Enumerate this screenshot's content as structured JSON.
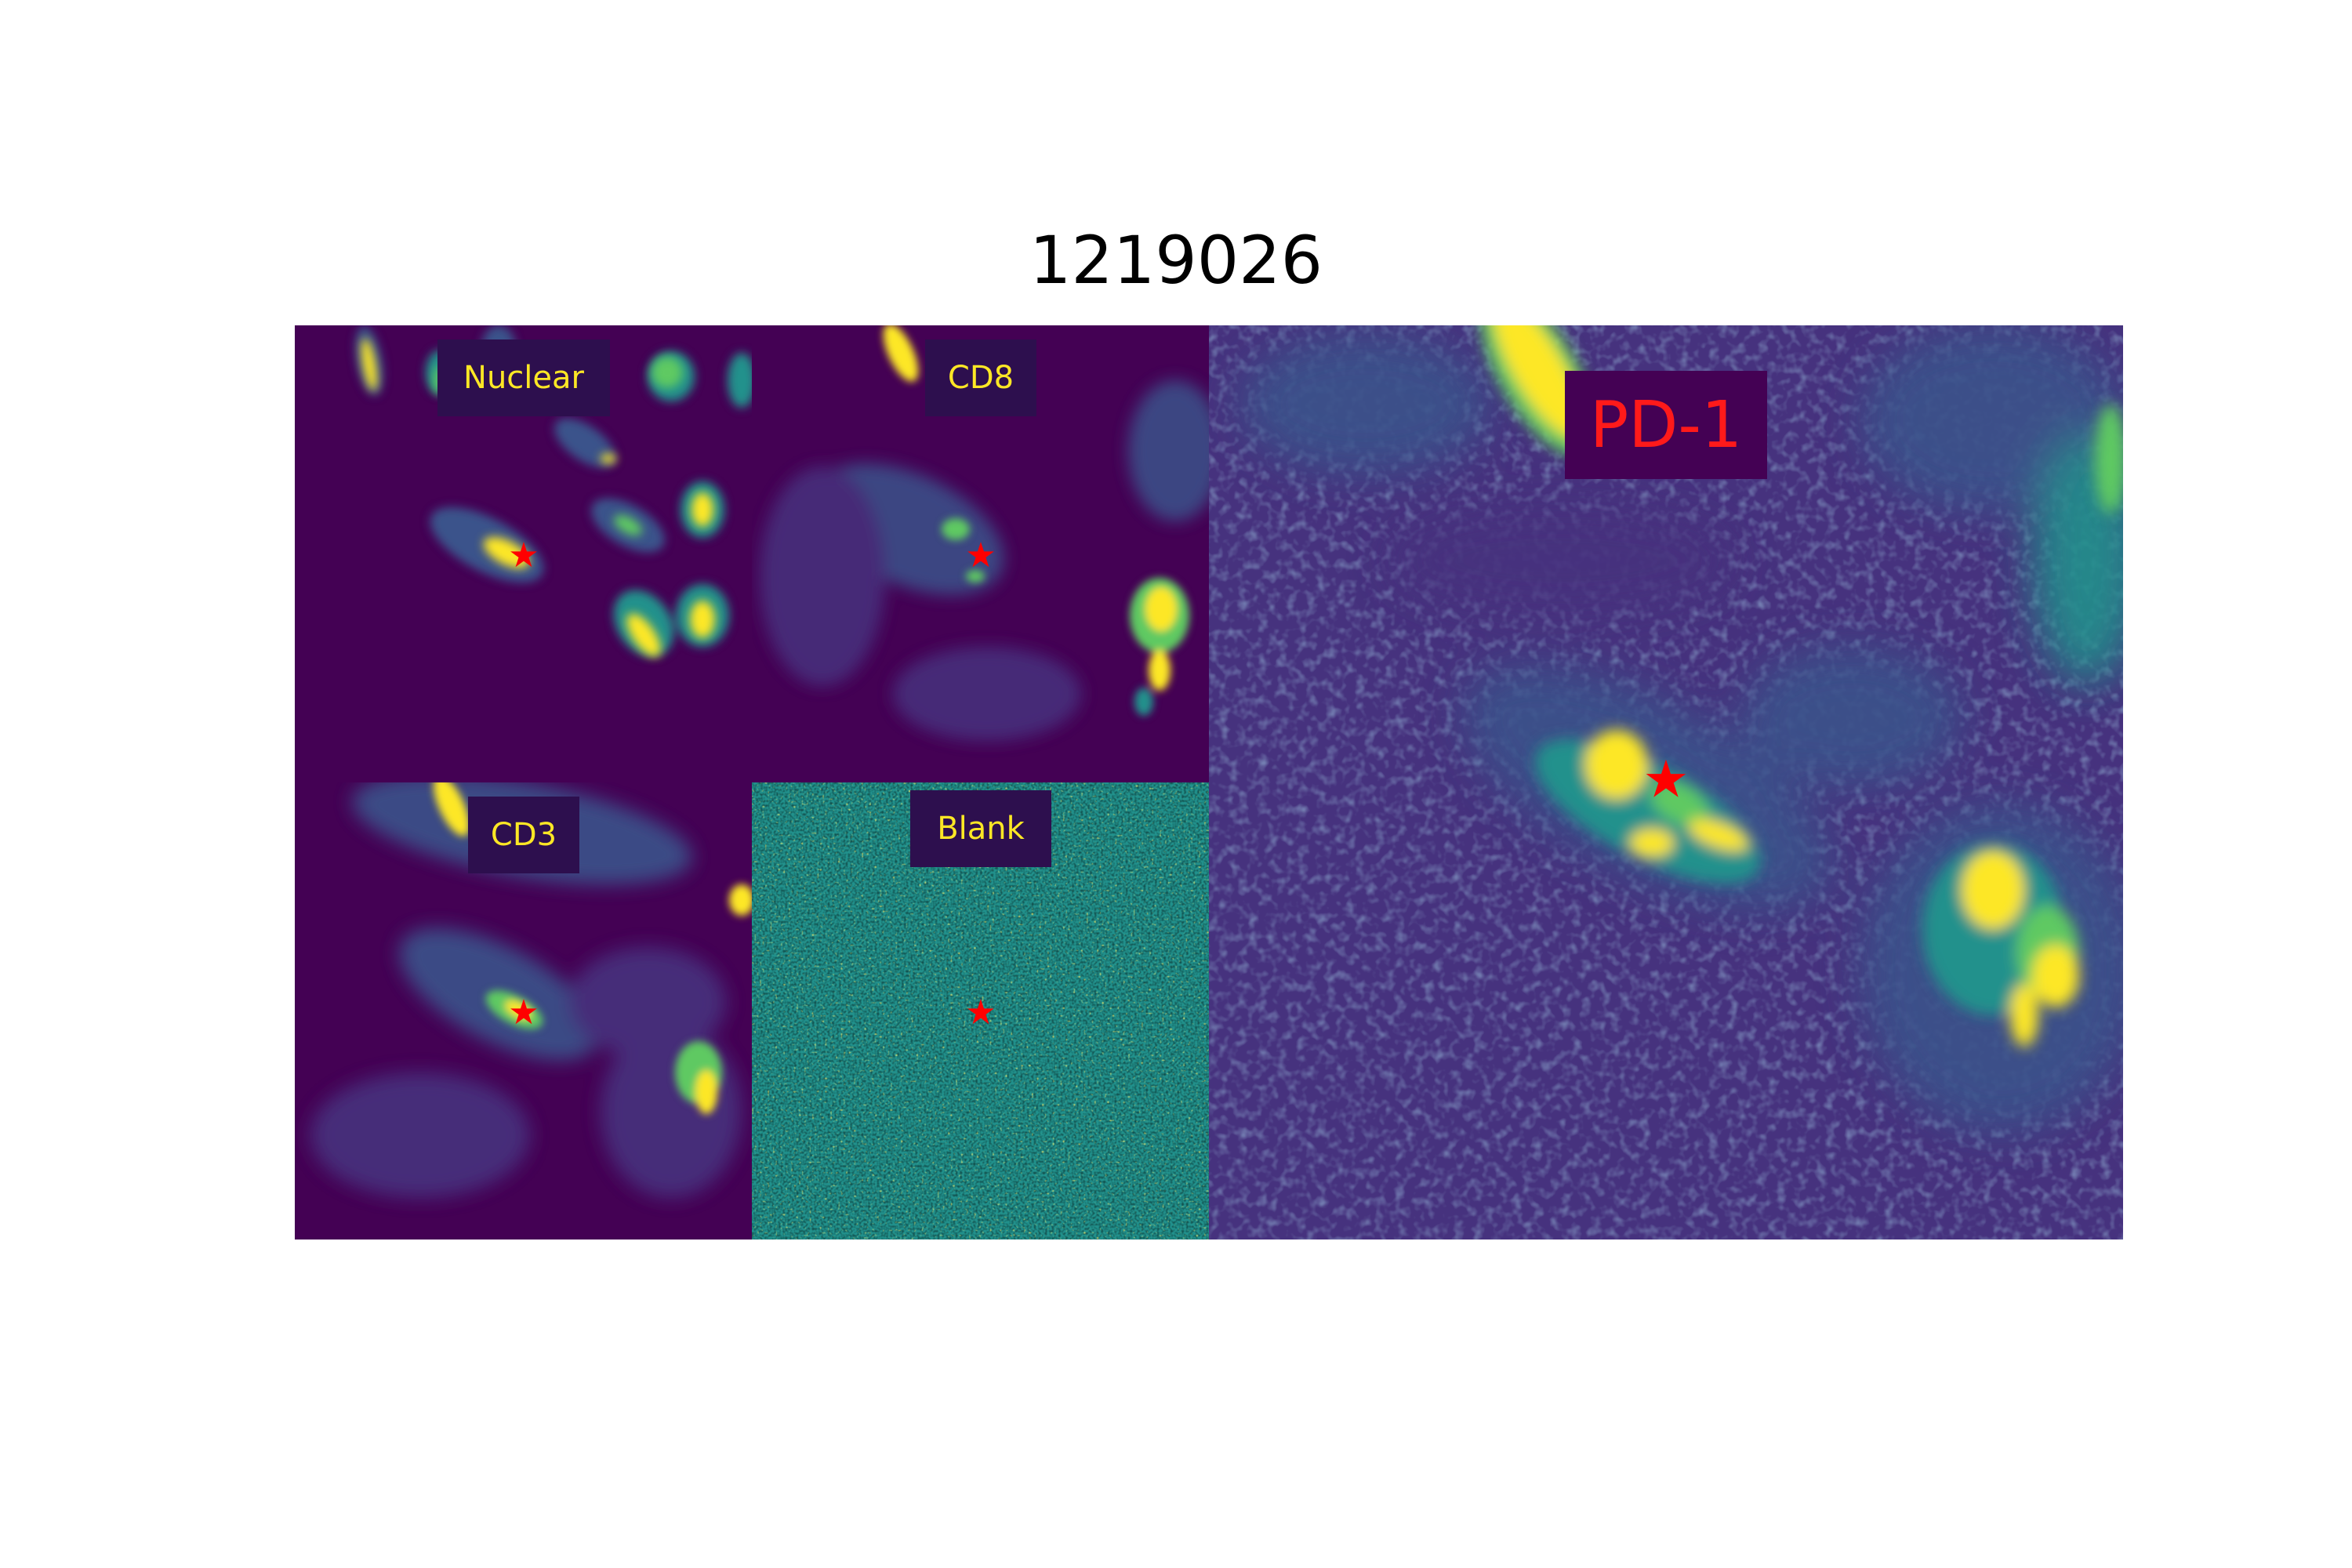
{
  "figure": {
    "title": "1219026"
  },
  "panels": [
    {
      "id": "nuclear",
      "label": "Nuclear",
      "label_color": "#fde725",
      "background": "viridis-dark"
    },
    {
      "id": "cd8",
      "label": "CD8",
      "label_color": "#fde725",
      "background": "viridis-dark"
    },
    {
      "id": "cd3",
      "label": "CD3",
      "label_color": "#fde725",
      "background": "viridis-dark"
    },
    {
      "id": "blank",
      "label": "Blank",
      "label_color": "#fde725",
      "background": "viridis-noise"
    },
    {
      "id": "pd1",
      "label": "PD-1",
      "label_color": "#ff1a1a",
      "background": "viridis-dark"
    }
  ],
  "marker": {
    "symbol": "★",
    "color": "#ff0000",
    "icon": "star-icon"
  },
  "colors": {
    "viridis_dark": "#440154",
    "viridis_blue": "#3b528b",
    "viridis_teal": "#21918c",
    "viridis_green": "#5ec962",
    "viridis_yellow": "#fde725",
    "label_box_bg": "#2d0f4e"
  }
}
